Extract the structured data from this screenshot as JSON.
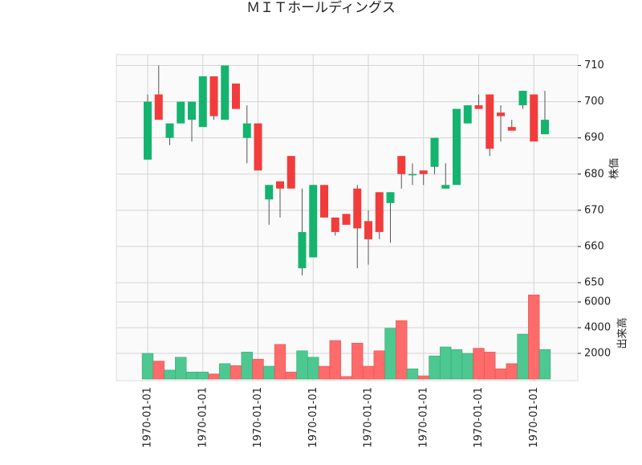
{
  "chart_data": [
    {
      "type": "candlestick",
      "title": "ＭＩＴホールディングス",
      "ylabel": "株価",
      "categories": [
        "1970-01-01",
        null,
        null,
        null,
        null,
        "1970-01-01",
        null,
        null,
        null,
        null,
        "1970-01-01",
        null,
        null,
        null,
        null,
        "1970-01-01",
        null,
        null,
        null,
        null,
        "1970-01-01",
        null,
        null,
        null,
        null,
        "1970-01-01",
        null,
        null,
        null,
        null,
        "1970-01-01",
        null,
        null,
        null,
        null,
        "1970-01-01",
        null
      ],
      "open": [
        684,
        702,
        690,
        694,
        695,
        693,
        707,
        695,
        705,
        690,
        694,
        673,
        678,
        685,
        654,
        657,
        677,
        668,
        669,
        676,
        667,
        675,
        672,
        685,
        680,
        681,
        682,
        676,
        677,
        694,
        699,
        702,
        697,
        693,
        699,
        702,
        691
      ],
      "high": [
        702,
        710,
        694,
        700,
        700,
        707,
        707,
        710,
        705,
        699,
        694,
        677,
        678,
        685,
        676,
        677,
        677,
        668,
        669,
        677,
        670,
        675,
        675,
        685,
        683,
        681,
        690,
        683,
        698,
        699,
        702,
        702,
        699,
        695,
        703,
        702,
        703
      ],
      "low": [
        684,
        695,
        688,
        694,
        689,
        693,
        695,
        695,
        698,
        683,
        681,
        666,
        668,
        676,
        652,
        657,
        668,
        663,
        666,
        654,
        655,
        662,
        661,
        676,
        677,
        677,
        680,
        676,
        677,
        694,
        698,
        685,
        689,
        692,
        698,
        689,
        691
      ],
      "close": [
        700,
        695,
        694,
        700,
        700,
        707,
        696,
        710,
        698,
        694,
        681,
        677,
        676,
        676,
        664,
        677,
        668,
        664,
        666,
        665,
        662,
        664,
        675,
        680,
        680,
        680,
        690,
        677,
        698,
        699,
        698,
        687,
        696,
        692,
        703,
        689,
        695
      ],
      "up_color": "#14b46e",
      "down_color": "#f23c3c",
      "ylim": [
        650,
        713
      ],
      "yticks": [
        650,
        660,
        670,
        680,
        690,
        700,
        710
      ],
      "grid": true
    },
    {
      "type": "bar",
      "ylabel": "出来高",
      "values": [
        2000,
        1400,
        700,
        1700,
        550,
        550,
        400,
        1200,
        1050,
        2100,
        1550,
        1000,
        2700,
        550,
        2200,
        1700,
        1000,
        3000,
        200,
        2800,
        1000,
        2200,
        3950,
        4550,
        800,
        250,
        1800,
        2500,
        2300,
        2000,
        2400,
        2100,
        800,
        1200,
        3500,
        6550,
        2300
      ],
      "up_color": "#4cc890",
      "down_color": "#ff6a6a",
      "ylim": [
        0,
        7500
      ],
      "yticks": [
        2000,
        4000,
        6000
      ],
      "grid": true
    }
  ]
}
